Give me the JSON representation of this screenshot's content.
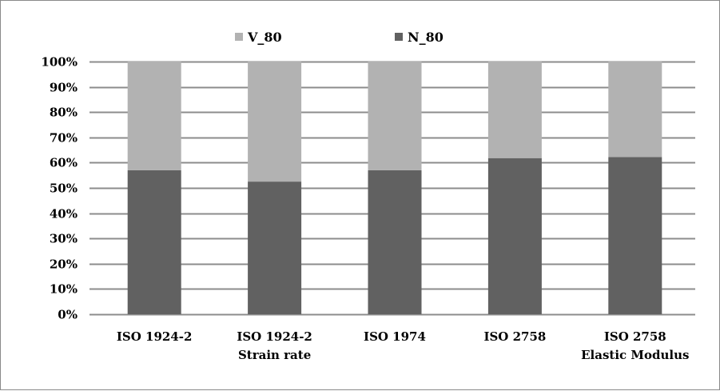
{
  "colors": {
    "V_80": "#b2b2b2",
    "N_80": "#616161",
    "grid": "#8c8c8c"
  },
  "chart_data": {
    "type": "bar",
    "stacked": true,
    "percent_stacked": true,
    "categories": [
      [
        "ISO 1924-2"
      ],
      [
        "ISO 1924-2",
        "Strain rate"
      ],
      [
        "ISO 1974"
      ],
      [
        "ISO 2758"
      ],
      [
        "ISO 2758",
        "Elastic Modulus"
      ]
    ],
    "series": [
      {
        "name": "N_80",
        "values": [
          57,
          52.5,
          57,
          61.8,
          62.2
        ]
      },
      {
        "name": "V_80",
        "values": [
          43,
          47.5,
          43,
          38.2,
          37.8
        ]
      }
    ],
    "legend_order": [
      "V_80",
      "N_80"
    ],
    "legend_position": "top",
    "ylim": [
      0,
      100
    ],
    "yticks": [
      "0%",
      "10%",
      "20%",
      "30%",
      "40%",
      "50%",
      "60%",
      "70%",
      "80%",
      "90%",
      "100%"
    ],
    "grid": true
  }
}
